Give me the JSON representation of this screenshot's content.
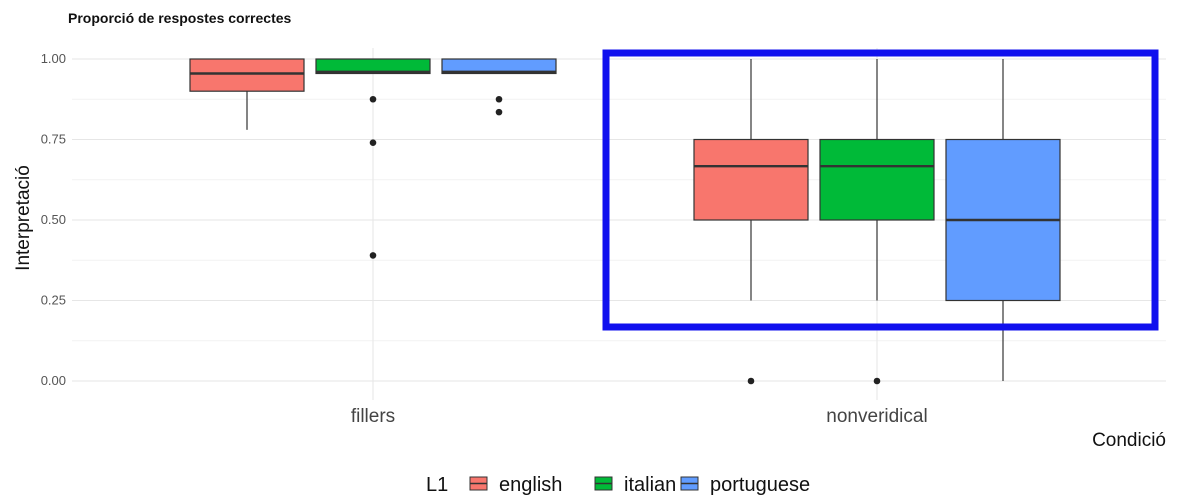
{
  "chart_data": {
    "type": "boxplot",
    "title": "Proporció de respostes correctes",
    "xlabel": "Condició",
    "ylabel": "Interpretació",
    "ylim": [
      0,
      1
    ],
    "y_ticks": [
      "0.00",
      "0.25",
      "0.50",
      "0.75",
      "1.00"
    ],
    "categories": [
      "fillers",
      "nonveridical"
    ],
    "legend": {
      "title": "L1",
      "position": "bottom"
    },
    "grid": true,
    "series": [
      {
        "name": "english",
        "color": "#F8766D",
        "boxes": [
          {
            "category": "fillers",
            "whisker_low": 0.78,
            "q1": 0.9,
            "median": 0.955,
            "q3": 1.0,
            "whisker_high": 1.0,
            "outliers": []
          },
          {
            "category": "nonveridical",
            "whisker_low": 0.25,
            "q1": 0.5,
            "median": 0.667,
            "q3": 0.75,
            "whisker_high": 1.0,
            "outliers": [
              0.0
            ]
          }
        ]
      },
      {
        "name": "italian",
        "color": "#00BA38",
        "boxes": [
          {
            "category": "fillers",
            "whisker_low": 0.955,
            "q1": 0.955,
            "median": 0.96,
            "q3": 1.0,
            "whisker_high": 1.0,
            "outliers": [
              0.875,
              0.74,
              0.39
            ]
          },
          {
            "category": "nonveridical",
            "whisker_low": 0.25,
            "q1": 0.5,
            "median": 0.667,
            "q3": 0.75,
            "whisker_high": 1.0,
            "outliers": [
              0.0
            ]
          }
        ]
      },
      {
        "name": "portuguese",
        "color": "#619CFF",
        "boxes": [
          {
            "category": "fillers",
            "whisker_low": 0.955,
            "q1": 0.955,
            "median": 0.96,
            "q3": 1.0,
            "whisker_high": 1.0,
            "outliers": [
              0.875,
              0.835
            ]
          },
          {
            "category": "nonveridical",
            "whisker_low": 0.0,
            "q1": 0.25,
            "median": 0.5,
            "q3": 0.75,
            "whisker_high": 1.0,
            "outliers": []
          }
        ]
      }
    ],
    "annotations": [
      {
        "type": "highlight-rectangle",
        "target": "nonveridical",
        "color": "#1010EE"
      }
    ]
  }
}
